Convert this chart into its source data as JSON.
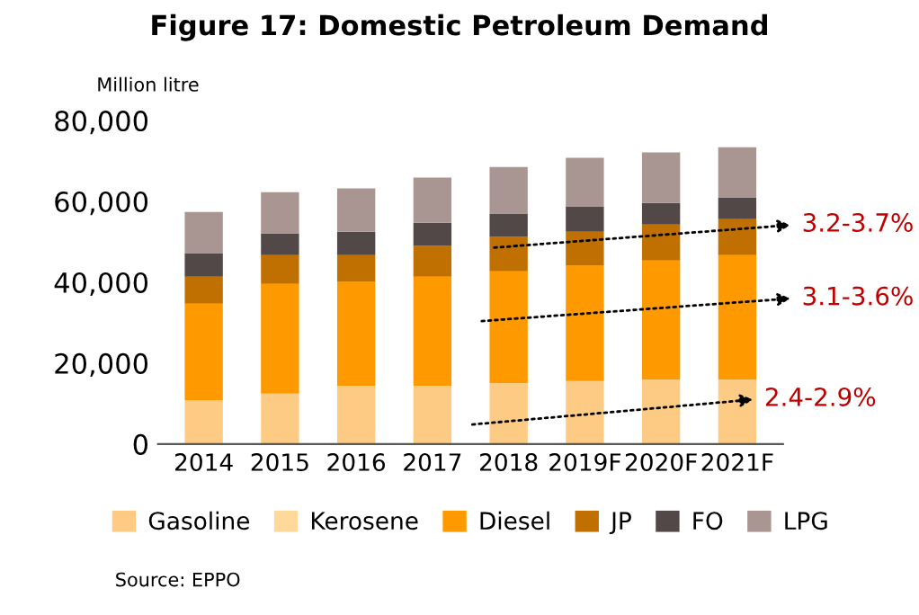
{
  "chart_data": {
    "type": "bar",
    "title": "Figure 17: Domestic Petroleum Demand",
    "ylabel": "Million litre",
    "categories": [
      "2014",
      "2015",
      "2016",
      "2017",
      "2018",
      "2019F",
      "2020F",
      "2021F"
    ],
    "stacked": true,
    "series": [
      {
        "name": "Gasoline",
        "color": "#fecb85",
        "values": [
          10800,
          12500,
          14400,
          14400,
          15100,
          15600,
          16000,
          16000
        ]
      },
      {
        "name": "Kerosene",
        "color": "#ffd89c",
        "values": [
          0,
          0,
          0,
          0,
          0,
          0,
          0,
          0
        ]
      },
      {
        "name": "Diesel",
        "color": "#ff9900",
        "values": [
          23900,
          27100,
          25700,
          27000,
          27600,
          28500,
          29400,
          30700
        ]
      },
      {
        "name": "JP",
        "color": "#c07000",
        "values": [
          6700,
          7100,
          6600,
          7600,
          8500,
          8400,
          8900,
          8900
        ]
      },
      {
        "name": "FO",
        "color": "#524848",
        "values": [
          5800,
          5400,
          5800,
          5700,
          5800,
          6300,
          5300,
          5400
        ]
      },
      {
        "name": "LPG",
        "color": "#a99692",
        "values": [
          10200,
          10200,
          10700,
          11200,
          11500,
          12000,
          12500,
          12400
        ]
      }
    ],
    "ylim": [
      0,
      80000
    ],
    "yticks": [
      {
        "value": 0,
        "label": "0"
      },
      {
        "value": 20000,
        "label": "20,000"
      },
      {
        "value": 40000,
        "label": "40,000"
      },
      {
        "value": 60000,
        "label": "60,000"
      },
      {
        "value": 80000,
        "label": "80,000"
      }
    ],
    "grid": false,
    "legend": "bottom",
    "annotations": [
      "3.2-3.7%",
      "3.1-3.6%",
      "2.4-2.9%",
      "Source: EPPO"
    ]
  }
}
